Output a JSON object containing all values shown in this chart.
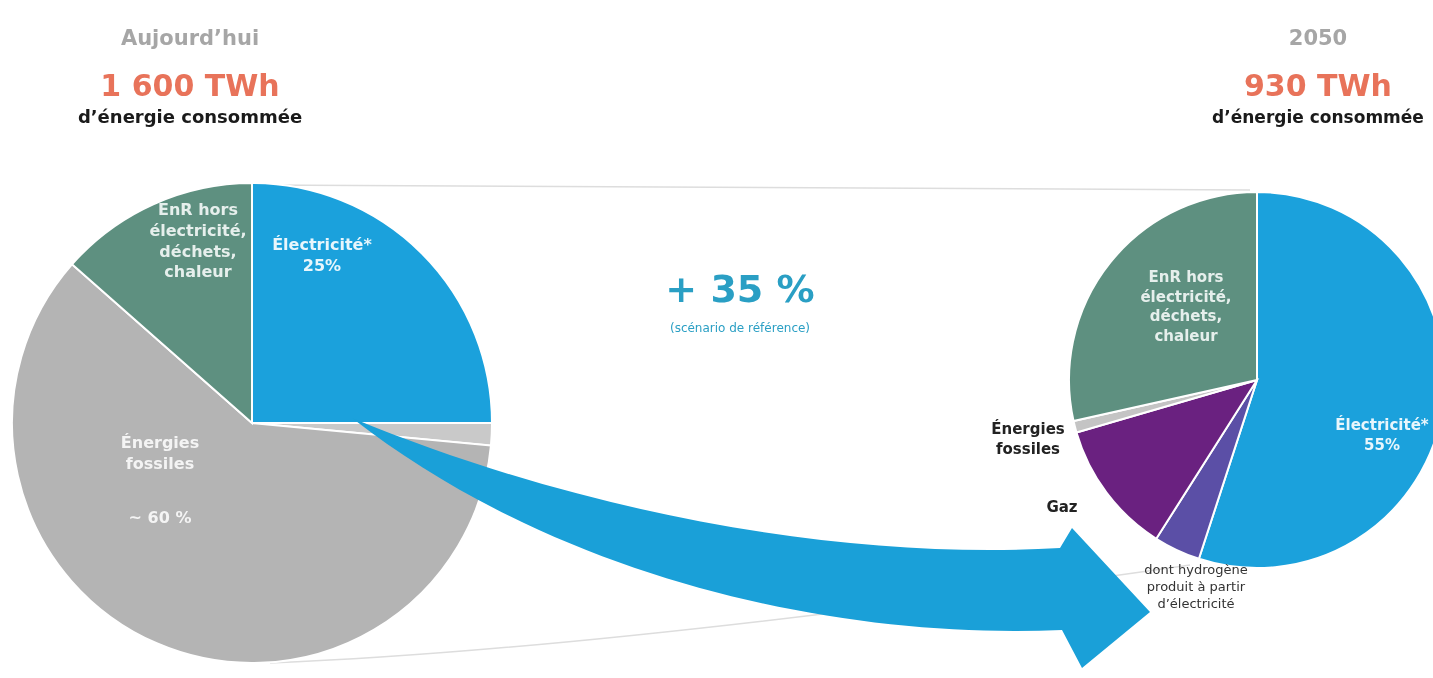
{
  "chart_data": [
    {
      "type": "pie",
      "title": "Aujourd’hui",
      "subtitle": "1 600 TWh",
      "annotations": [
        "d’énergie consommée",
        "+ 35 %",
        "(scénario de référence)"
      ],
      "categories": [
        "Électricité*",
        null,
        "Énergies fossiles",
        "EnR hors électricité, déchets, chaleur"
      ],
      "values": [
        25,
        1.5,
        60,
        13.5
      ],
      "colors": [
        "#1ba1dc",
        "#c9c9c9",
        "#b4b4b4",
        "#5e9080"
      ],
      "value_labels": [
        "25%",
        null,
        "~ 60 %",
        null
      ]
    },
    {
      "type": "pie",
      "title": "2050",
      "subtitle": "930 TWh",
      "annotations": [
        "d’énergie consommée"
      ],
      "categories": [
        "Électricité*",
        "dont hydrogène produit à partir d’électricité",
        "Gaz",
        "Énergies fossiles",
        "EnR hors électricité, déchets, chaleur"
      ],
      "values": [
        55,
        4,
        11.5,
        1,
        28.5
      ],
      "colors": [
        "#1ba1dc",
        "#5b4fa6",
        "#6a2180",
        "#c4c4c4",
        "#5e9080"
      ],
      "value_labels": [
        "55%",
        null,
        null,
        null,
        null
      ]
    }
  ]
}
